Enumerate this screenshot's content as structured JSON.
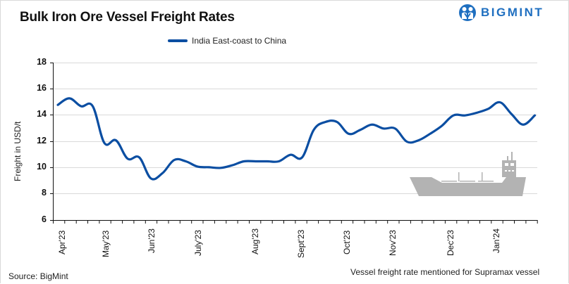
{
  "header": {
    "title": "Bulk Iron Ore Vessel Freight Rates",
    "logo_text": "BIGMINT"
  },
  "legend": {
    "label": "India East-coast to China"
  },
  "axes": {
    "ylabel": "Freight in USD/t",
    "yticks": [
      "18",
      "16",
      "14",
      "12",
      "10",
      "8",
      "6"
    ],
    "xticks": [
      "Apr'23",
      "May'23",
      "Jun'23",
      "July'23",
      "Aug'23",
      "Sept'23",
      "Oct'23",
      "Nov'23",
      "Dec'23",
      "Jan'24"
    ]
  },
  "footer": {
    "source": "Source: BigMint",
    "note": "Vessel freight rate mentioned for Supramax vessel"
  },
  "colors": {
    "series": "#0b4ea2",
    "grid": "#d9d9d9",
    "ship": "#b3b3b3",
    "logo": "#1f6fc0"
  },
  "chart_data": {
    "type": "line",
    "title": "Bulk Iron Ore Vessel Freight Rates",
    "xlabel": "",
    "ylabel": "Freight in USD/t",
    "ylim": [
      6,
      18
    ],
    "yticks": [
      6,
      8,
      10,
      12,
      14,
      16,
      18
    ],
    "grid": "horizontal",
    "legend_position": "top",
    "categories": [
      "Apr'23",
      "May'23",
      "Jun'23",
      "July'23",
      "Aug'23",
      "Sept'23",
      "Oct'23",
      "Nov'23",
      "Dec'23",
      "Jan'24"
    ],
    "series": [
      {
        "name": "India East-coast to China",
        "x_week_index": [
          0,
          1,
          2,
          3,
          4,
          5,
          6,
          7,
          8,
          9,
          10,
          11,
          12,
          13,
          14,
          15,
          16,
          17,
          18,
          19,
          20,
          21,
          22,
          23,
          24,
          25,
          26,
          27,
          28,
          29,
          30,
          31,
          32,
          33,
          34,
          35,
          36,
          37,
          38,
          39,
          40,
          41
        ],
        "values": [
          14.8,
          15.3,
          14.7,
          14.7,
          11.9,
          12.1,
          10.7,
          10.8,
          9.2,
          9.6,
          10.6,
          10.5,
          10.1,
          10.05,
          10.0,
          10.2,
          10.5,
          10.5,
          10.5,
          10.5,
          11.0,
          10.8,
          12.9,
          13.5,
          13.5,
          12.6,
          12.9,
          13.3,
          13.0,
          13.0,
          12.0,
          12.1,
          12.6,
          13.2,
          14.0,
          14.0,
          14.2,
          14.5,
          15.0,
          14.1,
          13.3,
          14.0
        ]
      }
    ],
    "annotations": [
      "Vessel freight rate mentioned for Supramax vessel",
      "Source: BigMint"
    ]
  }
}
